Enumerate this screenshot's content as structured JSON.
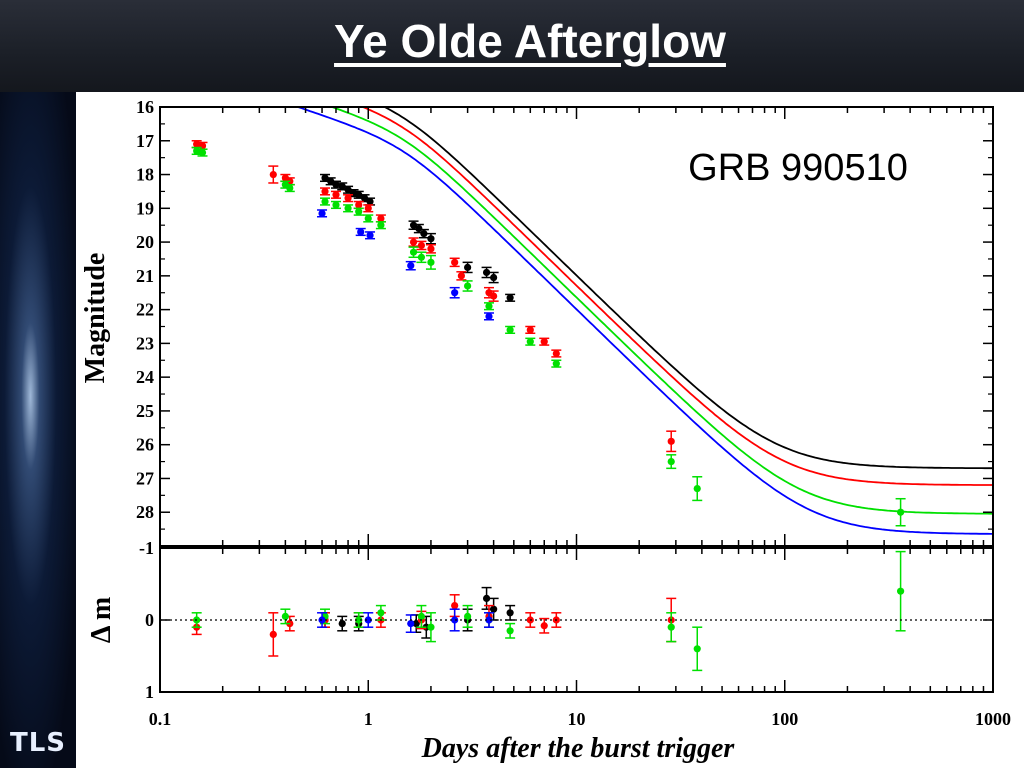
{
  "slide": {
    "title": "Ye Olde Afterglow",
    "logo_text": "TLS"
  },
  "chart_data": {
    "type": "scatter",
    "annotation": "GRB 990510",
    "xlabel": "Days after the burst trigger",
    "ylabel_top": "Magnitude",
    "ylabel_bottom": "Δ m",
    "xscale": "log",
    "xlim": [
      0.1,
      1000
    ],
    "x_ticks": [
      "0.1",
      "1",
      "10",
      "100",
      "1000"
    ],
    "top_panel": {
      "ylim": [
        16,
        29
      ],
      "y_inverted": true,
      "y_ticks": [
        "16",
        "17",
        "18",
        "19",
        "20",
        "21",
        "22",
        "23",
        "24",
        "25",
        "26",
        "27",
        "28"
      ]
    },
    "bottom_panel": {
      "ylim": [
        -1,
        1
      ],
      "y_inverted": true,
      "y_ticks": [
        "-1",
        "0",
        "1"
      ]
    },
    "series": [
      {
        "color": "#000000",
        "model": {
          "m0": 16.35,
          "alpha1": 0.82,
          "alpha2": 2.4,
          "tb": 1.5,
          "host": 27.0
        },
        "points": [
          [
            0.62,
            18.1,
            0.1
          ],
          [
            0.66,
            18.2,
            0.1
          ],
          [
            0.7,
            18.3,
            0.1
          ],
          [
            0.75,
            18.35,
            0.1
          ],
          [
            0.8,
            18.45,
            0.1
          ],
          [
            0.85,
            18.55,
            0.1
          ],
          [
            0.9,
            18.6,
            0.1
          ],
          [
            0.96,
            18.7,
            0.1
          ],
          [
            1.02,
            18.8,
            0.1
          ],
          [
            1.65,
            19.5,
            0.12
          ],
          [
            1.75,
            19.6,
            0.12
          ],
          [
            1.85,
            19.75,
            0.12
          ],
          [
            2.0,
            19.9,
            0.15
          ],
          [
            3.0,
            20.75,
            0.15
          ],
          [
            3.7,
            20.9,
            0.15
          ],
          [
            4.0,
            21.05,
            0.15
          ],
          [
            4.8,
            21.65,
            0.1
          ]
        ],
        "residuals": [
          [
            0.62,
            0.0,
            0.1
          ],
          [
            0.75,
            0.05,
            0.1
          ],
          [
            0.9,
            0.05,
            0.1
          ],
          [
            1.7,
            0.05,
            0.12
          ],
          [
            1.9,
            0.1,
            0.15
          ],
          [
            3.0,
            0.0,
            0.15
          ],
          [
            3.7,
            -0.3,
            0.15
          ],
          [
            4.0,
            -0.15,
            0.15
          ],
          [
            4.8,
            -0.1,
            0.1
          ]
        ]
      },
      {
        "color": "#ff0000",
        "model": {
          "m0": 16.65,
          "alpha1": 0.82,
          "alpha2": 2.4,
          "tb": 1.5,
          "host": 27.5
        },
        "points": [
          [
            0.15,
            17.1,
            0.1
          ],
          [
            0.16,
            17.15,
            0.1
          ],
          [
            0.35,
            18.0,
            0.25
          ],
          [
            0.4,
            18.1,
            0.1
          ],
          [
            0.42,
            18.2,
            0.1
          ],
          [
            0.62,
            18.5,
            0.1
          ],
          [
            0.7,
            18.6,
            0.1
          ],
          [
            0.8,
            18.7,
            0.1
          ],
          [
            0.9,
            18.9,
            0.1
          ],
          [
            1.0,
            19.0,
            0.1
          ],
          [
            1.15,
            19.3,
            0.1
          ],
          [
            1.65,
            20.0,
            0.12
          ],
          [
            1.8,
            20.1,
            0.12
          ],
          [
            2.0,
            20.2,
            0.12
          ],
          [
            2.6,
            20.6,
            0.12
          ],
          [
            2.8,
            21.0,
            0.12
          ],
          [
            3.8,
            21.5,
            0.15
          ],
          [
            4.0,
            21.6,
            0.15
          ],
          [
            6.0,
            22.6,
            0.1
          ],
          [
            7.0,
            22.95,
            0.1
          ],
          [
            8.0,
            23.3,
            0.1
          ],
          [
            28.5,
            25.9,
            0.3
          ]
        ],
        "residuals": [
          [
            0.15,
            0.1,
            0.1
          ],
          [
            0.35,
            0.2,
            0.3
          ],
          [
            0.42,
            0.05,
            0.1
          ],
          [
            0.62,
            0.0,
            0.1
          ],
          [
            0.9,
            0.0,
            0.1
          ],
          [
            1.15,
            0.0,
            0.1
          ],
          [
            1.8,
            0.0,
            0.12
          ],
          [
            2.6,
            -0.2,
            0.15
          ],
          [
            3.8,
            -0.05,
            0.15
          ],
          [
            6.0,
            0.0,
            0.1
          ],
          [
            7.0,
            0.08,
            0.1
          ],
          [
            8.0,
            0.0,
            0.1
          ],
          [
            28.5,
            0.0,
            0.3
          ]
        ]
      },
      {
        "color": "#00e000",
        "model": {
          "m0": 17.0,
          "alpha1": 0.82,
          "alpha2": 2.4,
          "tb": 1.5,
          "host": 28.35
        },
        "points": [
          [
            0.15,
            17.3,
            0.1
          ],
          [
            0.16,
            17.35,
            0.1
          ],
          [
            0.4,
            18.3,
            0.1
          ],
          [
            0.42,
            18.4,
            0.1
          ],
          [
            0.62,
            18.8,
            0.1
          ],
          [
            0.7,
            18.9,
            0.1
          ],
          [
            0.8,
            19.0,
            0.1
          ],
          [
            0.9,
            19.1,
            0.1
          ],
          [
            1.0,
            19.3,
            0.1
          ],
          [
            1.15,
            19.5,
            0.1
          ],
          [
            1.65,
            20.3,
            0.15
          ],
          [
            1.8,
            20.45,
            0.15
          ],
          [
            2.0,
            20.6,
            0.2
          ],
          [
            3.0,
            21.3,
            0.15
          ],
          [
            3.8,
            21.9,
            0.1
          ],
          [
            4.8,
            22.6,
            0.1
          ],
          [
            6.0,
            22.95,
            0.1
          ],
          [
            8.0,
            23.6,
            0.1
          ],
          [
            28.5,
            26.5,
            0.2
          ],
          [
            38,
            27.3,
            0.35
          ],
          [
            360,
            28.0,
            0.4
          ]
        ],
        "residuals": [
          [
            0.15,
            0.0,
            0.1
          ],
          [
            0.4,
            -0.05,
            0.1
          ],
          [
            0.62,
            -0.05,
            0.1
          ],
          [
            0.9,
            0.0,
            0.1
          ],
          [
            1.15,
            -0.1,
            0.1
          ],
          [
            1.8,
            -0.05,
            0.15
          ],
          [
            2.0,
            0.1,
            0.2
          ],
          [
            3.0,
            -0.05,
            0.15
          ],
          [
            3.8,
            0.0,
            0.1
          ],
          [
            4.8,
            0.15,
            0.1
          ],
          [
            28.5,
            0.1,
            0.2
          ],
          [
            38,
            0.4,
            0.3
          ],
          [
            360,
            -0.4,
            0.55
          ]
        ]
      },
      {
        "color": "#0000ff",
        "model": {
          "m0": 17.35,
          "alpha1": 0.82,
          "alpha2": 2.4,
          "tb": 1.5,
          "host": 28.95
        },
        "points": [
          [
            0.6,
            19.15,
            0.1
          ],
          [
            0.92,
            19.7,
            0.1
          ],
          [
            1.02,
            19.8,
            0.1
          ],
          [
            1.6,
            20.7,
            0.12
          ],
          [
            2.6,
            21.5,
            0.15
          ],
          [
            3.8,
            22.2,
            0.1
          ]
        ],
        "residuals": [
          [
            0.6,
            0.0,
            0.1
          ],
          [
            1.0,
            0.0,
            0.1
          ],
          [
            1.6,
            0.05,
            0.12
          ],
          [
            2.6,
            0.0,
            0.15
          ],
          [
            3.8,
            0.0,
            0.1
          ]
        ]
      }
    ]
  }
}
